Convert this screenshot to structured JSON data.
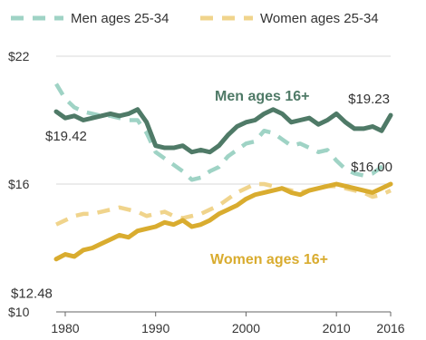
{
  "chart_data": {
    "type": "line",
    "title": "",
    "xlabel": "",
    "ylabel": "",
    "xlim": [
      1979,
      2016
    ],
    "ylim": [
      10,
      22
    ],
    "y_ticks": [
      {
        "value": 22,
        "label": "$22"
      },
      {
        "value": 16,
        "label": "$16"
      },
      {
        "value": 10,
        "label": "$10"
      }
    ],
    "x_ticks": [
      {
        "value": 1980,
        "label": "1980"
      },
      {
        "value": 1990,
        "label": "1990"
      },
      {
        "value": 2000,
        "label": "2000"
      },
      {
        "value": 2010,
        "label": "2010"
      },
      {
        "value": 2016,
        "label": "2016"
      }
    ],
    "grid": "horizontal gridlines at labeled y ticks",
    "legend_position": "top",
    "legend": [
      {
        "name": "Men ages 25-34",
        "series": "men_25_34"
      },
      {
        "name": "Women ages 25-34",
        "series": "women_25_34"
      }
    ],
    "series": [
      {
        "id": "men_25_34",
        "name": "Men ages 25-34",
        "color": "#9fd3c5",
        "style": "dashed",
        "x": [
          1979,
          1980,
          1981,
          1982,
          1983,
          1984,
          1985,
          1986,
          1987,
          1988,
          1989,
          1990,
          1991,
          1992,
          1993,
          1994,
          1995,
          1996,
          1997,
          1998,
          1999,
          2000,
          2001,
          2002,
          2003,
          2004,
          2005,
          2006,
          2007,
          2008,
          2009,
          2010,
          2011,
          2012,
          2013,
          2014,
          2015,
          2016
        ],
        "y": [
          20.7,
          20.0,
          19.6,
          19.4,
          19.3,
          19.2,
          19.2,
          19.1,
          19.0,
          19.0,
          18.4,
          17.5,
          17.2,
          16.9,
          16.6,
          16.2,
          16.3,
          16.6,
          16.8,
          17.3,
          17.6,
          17.9,
          18.0,
          18.5,
          18.4,
          18.1,
          17.8,
          17.9,
          17.7,
          17.5,
          17.6,
          17.1,
          16.7,
          16.5,
          16.4,
          16.5,
          16.8,
          17.0
        ]
      },
      {
        "id": "women_25_34",
        "name": "Women ages 25-34",
        "color": "#f0d48c",
        "style": "dashed",
        "x": [
          1979,
          1980,
          1981,
          1982,
          1983,
          1984,
          1985,
          1986,
          1987,
          1988,
          1989,
          1990,
          1991,
          1992,
          1993,
          1994,
          1995,
          1996,
          1997,
          1998,
          1999,
          2000,
          2001,
          2002,
          2003,
          2004,
          2005,
          2006,
          2007,
          2008,
          2009,
          2010,
          2011,
          2012,
          2013,
          2014,
          2015,
          2016
        ],
        "y": [
          14.1,
          14.3,
          14.5,
          14.6,
          14.6,
          14.7,
          14.8,
          14.9,
          14.8,
          14.7,
          14.5,
          14.6,
          14.7,
          14.5,
          14.4,
          14.5,
          14.6,
          14.8,
          15.0,
          15.3,
          15.6,
          15.8,
          16.0,
          16.0,
          15.9,
          15.8,
          15.7,
          15.6,
          15.7,
          15.8,
          15.9,
          15.9,
          15.8,
          15.7,
          15.6,
          15.4,
          15.5,
          15.7
        ]
      },
      {
        "id": "men_16_plus",
        "name": "Men ages 16+",
        "color": "#4f7a67",
        "style": "solid",
        "x": [
          1979,
          1980,
          1981,
          1982,
          1983,
          1984,
          1985,
          1986,
          1987,
          1988,
          1989,
          1990,
          1991,
          1992,
          1993,
          1994,
          1995,
          1996,
          1997,
          1998,
          1999,
          2000,
          2001,
          2002,
          2003,
          2004,
          2005,
          2006,
          2007,
          2008,
          2009,
          2010,
          2011,
          2012,
          2013,
          2014,
          2015,
          2016
        ],
        "y": [
          19.4,
          19.1,
          19.2,
          19.0,
          19.1,
          19.2,
          19.3,
          19.2,
          19.3,
          19.5,
          18.9,
          17.8,
          17.7,
          17.7,
          17.8,
          17.5,
          17.6,
          17.5,
          17.8,
          18.3,
          18.7,
          18.9,
          19.0,
          19.3,
          19.5,
          19.3,
          18.9,
          19.0,
          19.1,
          18.8,
          19.0,
          19.3,
          18.9,
          18.6,
          18.6,
          18.7,
          18.5,
          19.23
        ]
      },
      {
        "id": "women_16_plus",
        "name": "Women ages 16+",
        "color": "#d9ac2f",
        "style": "solid",
        "x": [
          1979,
          1980,
          1981,
          1982,
          1983,
          1984,
          1985,
          1986,
          1987,
          1988,
          1989,
          1990,
          1991,
          1992,
          1993,
          1994,
          1995,
          1996,
          1997,
          1998,
          1999,
          2000,
          2001,
          2002,
          2003,
          2004,
          2005,
          2006,
          2007,
          2008,
          2009,
          2010,
          2011,
          2012,
          2013,
          2014,
          2015,
          2016
        ],
        "y": [
          12.48,
          12.7,
          12.6,
          12.9,
          13.0,
          13.2,
          13.4,
          13.6,
          13.5,
          13.8,
          13.9,
          14.0,
          14.2,
          14.1,
          14.3,
          14.0,
          14.1,
          14.3,
          14.6,
          14.8,
          15.0,
          15.3,
          15.5,
          15.6,
          15.7,
          15.8,
          15.6,
          15.5,
          15.7,
          15.8,
          15.9,
          16.0,
          15.9,
          15.8,
          15.7,
          15.6,
          15.8,
          16.0
        ]
      }
    ],
    "annotations": {
      "men_16_plus": "Men ages 16+",
      "women_16_plus": "Women ages 16+"
    },
    "value_labels": [
      {
        "series": "men_16_plus",
        "text": "$19.42"
      },
      {
        "series": "men_16_plus",
        "text": "$19.23"
      },
      {
        "series": "women_16_plus",
        "text": "$12.48"
      },
      {
        "series": "women_16_plus",
        "text": "$16.00"
      }
    ]
  }
}
